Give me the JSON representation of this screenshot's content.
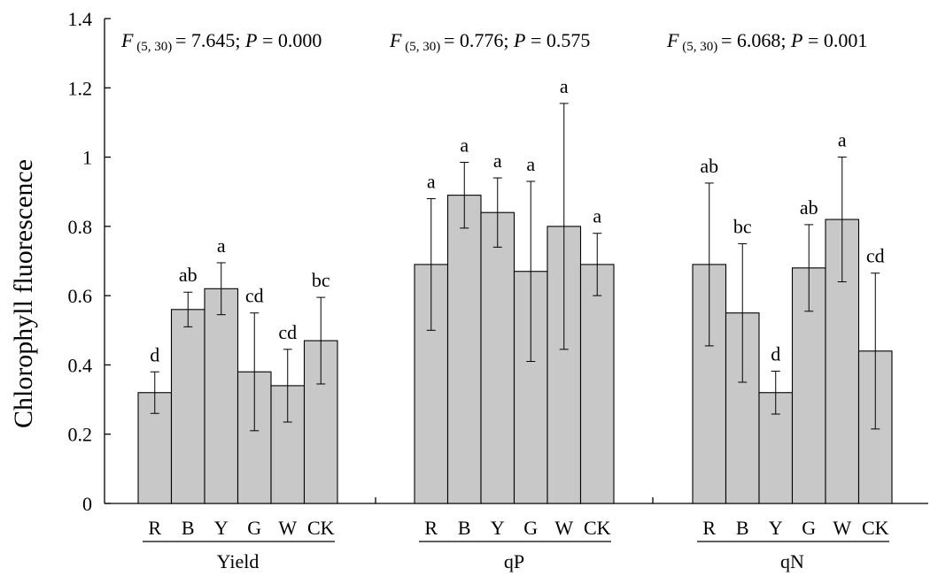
{
  "chart_data": {
    "type": "bar",
    "ylabel": "Chlorophyll fluorescence",
    "ylim": [
      0,
      1.4
    ],
    "yticks": [
      "0",
      "0.2",
      "0.4",
      "0.6",
      "0.8",
      "1",
      "1.2",
      "1.4"
    ],
    "ytick_values": [
      0,
      0.2,
      0.4,
      0.6,
      0.8,
      1.0,
      1.2,
      1.4
    ],
    "categories": [
      "R",
      "B",
      "Y",
      "G",
      "W",
      "CK"
    ],
    "bar_color": "#c8c8c8",
    "groups": [
      {
        "name": "Yield",
        "stats": {
          "F": "F",
          "df": "(5, 30)",
          "f_value": "= 7.645; ",
          "P": "P",
          "p_value": " = 0.000"
        },
        "values": [
          0.32,
          0.56,
          0.62,
          0.38,
          0.34,
          0.47
        ],
        "errors": [
          0.06,
          0.05,
          0.075,
          0.17,
          0.105,
          0.125
        ],
        "letters": [
          "d",
          "ab",
          "a",
          "cd",
          "cd",
          "bc"
        ]
      },
      {
        "name": "qP",
        "stats": {
          "F": "F",
          "df": "(5, 30)",
          "f_value": "= 0.776; ",
          "P": "P",
          "p_value": " = 0.575"
        },
        "values": [
          0.69,
          0.89,
          0.84,
          0.67,
          0.8,
          0.69
        ],
        "errors": [
          0.19,
          0.095,
          0.1,
          0.26,
          0.355,
          0.09
        ],
        "letters": [
          "a",
          "a",
          "a",
          "a",
          "a",
          "a"
        ]
      },
      {
        "name": "qN",
        "stats": {
          "F": "F",
          "df": "(5, 30)",
          "f_value": "= 6.068; ",
          "P": "P",
          "p_value": " = 0.001"
        },
        "values": [
          0.69,
          0.55,
          0.32,
          0.68,
          0.82,
          0.44
        ],
        "errors": [
          0.235,
          0.2,
          0.062,
          0.125,
          0.18,
          0.225
        ],
        "letters": [
          "ab",
          "bc",
          "d",
          "ab",
          "a",
          "cd"
        ]
      }
    ]
  }
}
